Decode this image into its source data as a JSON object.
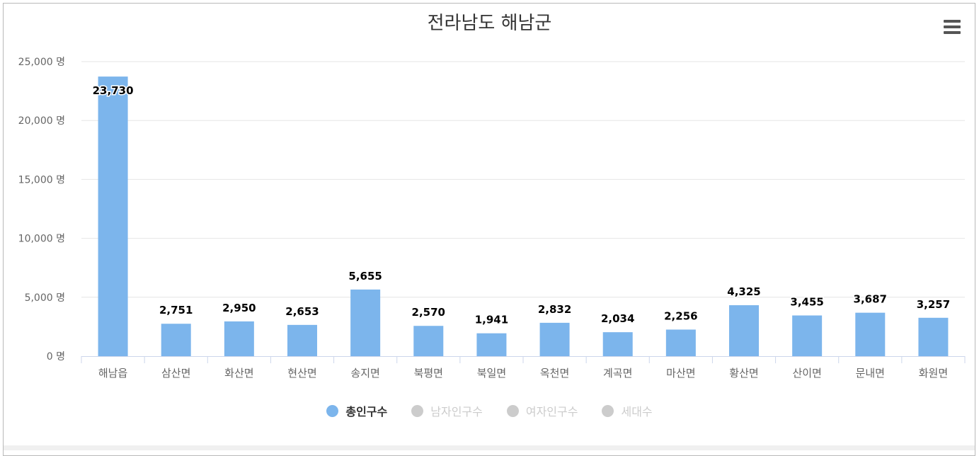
{
  "chart_title": "전라남도 해남군",
  "colors": {
    "bar": "#7cb5ec",
    "inactive_legend": "#cccccc",
    "grid": "#e6e6e6",
    "axis_text": "#666666"
  },
  "menu_icon": "hamburger-menu-icon",
  "legend": [
    {
      "label": "총인구수",
      "active": true
    },
    {
      "label": "남자인구수",
      "active": false
    },
    {
      "label": "여자인구수",
      "active": false
    },
    {
      "label": "세대수",
      "active": false
    }
  ],
  "chart_data": {
    "type": "bar",
    "title": "전라남도 해남군",
    "categories": [
      "해남읍",
      "삼산면",
      "화산면",
      "현산면",
      "송지면",
      "북평면",
      "북일면",
      "옥천면",
      "계곡면",
      "마산면",
      "황산면",
      "산이면",
      "문내면",
      "화원면"
    ],
    "series": [
      {
        "name": "총인구수",
        "values": [
          23730,
          2751,
          2950,
          2653,
          5655,
          2570,
          1941,
          2832,
          2034,
          2256,
          4325,
          3455,
          3687,
          3257
        ]
      }
    ],
    "data_labels": [
      "23,730",
      "2,751",
      "2,950",
      "2,653",
      "5,655",
      "2,570",
      "1,941",
      "2,832",
      "2,034",
      "2,256",
      "4,325",
      "3,455",
      "3,687",
      "3,257"
    ],
    "y_ticks": [
      "0 명",
      "5,000 명",
      "10,000 명",
      "15,000 명",
      "20,000 명",
      "25,000 명"
    ],
    "ylim": [
      0,
      25000
    ],
    "grid": true,
    "legend_position": "bottom"
  }
}
